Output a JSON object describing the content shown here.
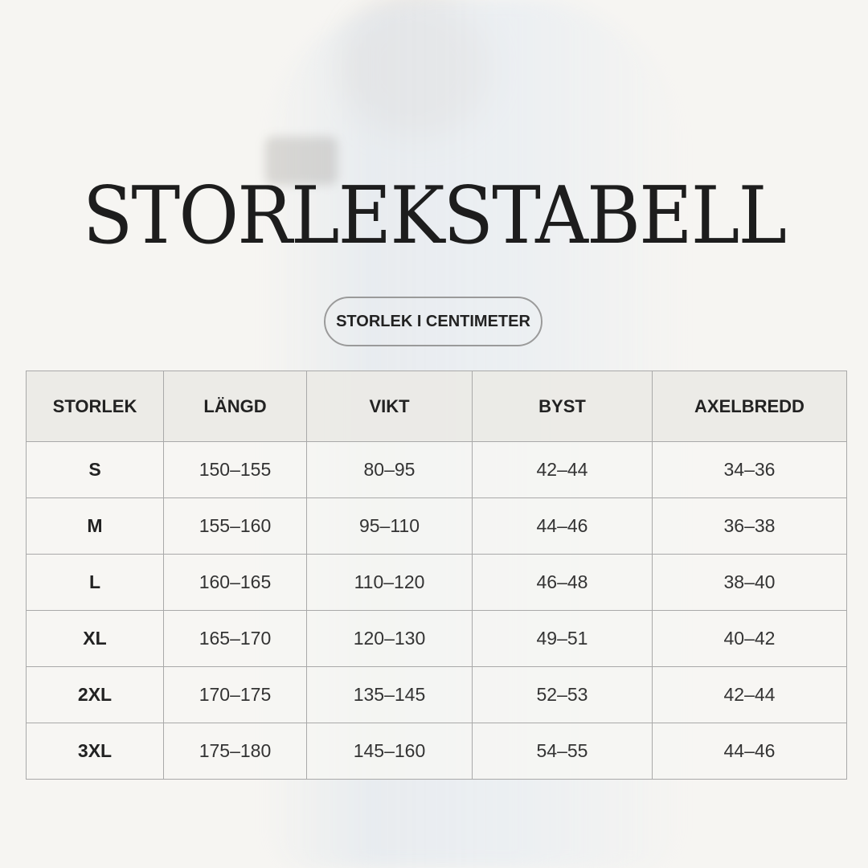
{
  "title": "STORLEKSTABELL",
  "subtitle": "STORLEK I CENTIMETER",
  "table": {
    "headers": [
      "STORLEK",
      "LÄNGD",
      "VIKT",
      "BYST",
      "AXELBREDD"
    ],
    "rows": [
      [
        "S",
        "150–155",
        "80–95",
        "42–44",
        "34–36"
      ],
      [
        "M",
        "155–160",
        "95–110",
        "44–46",
        "36–38"
      ],
      [
        "L",
        "160–165",
        "110–120",
        "46–48",
        "38–40"
      ],
      [
        "XL",
        "165–170",
        "120–130",
        "49–51",
        "40–42"
      ],
      [
        "2XL",
        "170–175",
        "135–145",
        "52–53",
        "42–44"
      ],
      [
        "3XL",
        "175–180",
        "145–160",
        "54–55",
        "44–46"
      ]
    ]
  }
}
